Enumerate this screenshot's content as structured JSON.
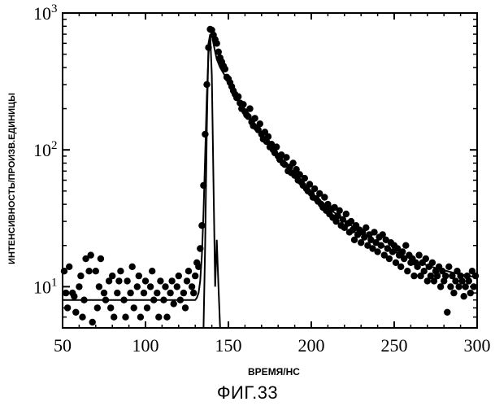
{
  "figure_label": "ФИГ.33",
  "chart_data": {
    "type": "scatter",
    "title": "",
    "xlabel": "ВРЕМЯ/НС",
    "ylabel": "ИНТЕНСИВНОСТЬ/ПРОИЗВ.ЕДИНИЦЫ",
    "xlim": [
      50,
      300
    ],
    "ylim": [
      5,
      1000
    ],
    "yscale": "log",
    "grid": false,
    "x_ticks": [
      {
        "value": 50,
        "label": "50"
      },
      {
        "value": 100,
        "label": "100"
      },
      {
        "value": 150,
        "label": "150"
      },
      {
        "value": 200,
        "label": "200"
      },
      {
        "value": 250,
        "label": "250"
      },
      {
        "value": 300,
        "label": "300"
      }
    ],
    "y_ticks": [
      {
        "value": 10,
        "base": "10",
        "exp": "1"
      },
      {
        "value": 100,
        "base": "10",
        "exp": "2"
      },
      {
        "value": 1000,
        "base": "10",
        "exp": "3"
      }
    ],
    "series": [
      {
        "role": "measured",
        "marker": "filled-circle",
        "points": [
          [
            51,
            13
          ],
          [
            52,
            9
          ],
          [
            53,
            7
          ],
          [
            54,
            14
          ],
          [
            56,
            9
          ],
          [
            57,
            8.5
          ],
          [
            58,
            6.5
          ],
          [
            60,
            10
          ],
          [
            61,
            12
          ],
          [
            62,
            6
          ],
          [
            63,
            8
          ],
          [
            64,
            16
          ],
          [
            66,
            13
          ],
          [
            67,
            17
          ],
          [
            68,
            5.5
          ],
          [
            70,
            13
          ],
          [
            71,
            7
          ],
          [
            72,
            10
          ],
          [
            73,
            16
          ],
          [
            75,
            9
          ],
          [
            76,
            8
          ],
          [
            78,
            11
          ],
          [
            79,
            7
          ],
          [
            80,
            12
          ],
          [
            81,
            6
          ],
          [
            83,
            9
          ],
          [
            84,
            11
          ],
          [
            85,
            13
          ],
          [
            87,
            8
          ],
          [
            88,
            6
          ],
          [
            89,
            11
          ],
          [
            91,
            9
          ],
          [
            92,
            14
          ],
          [
            93,
            7
          ],
          [
            95,
            10
          ],
          [
            96,
            12
          ],
          [
            97,
            6
          ],
          [
            99,
            9
          ],
          [
            100,
            11
          ],
          [
            101,
            7
          ],
          [
            103,
            10
          ],
          [
            104,
            13
          ],
          [
            105,
            8
          ],
          [
            107,
            9
          ],
          [
            108,
            6
          ],
          [
            109,
            11
          ],
          [
            111,
            8
          ],
          [
            112,
            10
          ],
          [
            113,
            6
          ],
          [
            115,
            9
          ],
          [
            116,
            11
          ],
          [
            117,
            7.5
          ],
          [
            119,
            10
          ],
          [
            120,
            12
          ],
          [
            121,
            8
          ],
          [
            123,
            9
          ],
          [
            124,
            7
          ],
          [
            125,
            11
          ],
          [
            126,
            13
          ],
          [
            128,
            10
          ],
          [
            129,
            9
          ],
          [
            130,
            12
          ],
          [
            131,
            15
          ],
          [
            132,
            14
          ],
          [
            133,
            19
          ],
          [
            134,
            28
          ],
          [
            135,
            55
          ],
          [
            136,
            130
          ],
          [
            137,
            300
          ],
          [
            138,
            560
          ],
          [
            139,
            760
          ],
          [
            140,
            750
          ],
          [
            141,
            690
          ],
          [
            142,
            640
          ],
          [
            143,
            600
          ],
          [
            144,
            520
          ],
          [
            145,
            470
          ],
          [
            146,
            440
          ],
          [
            147,
            410
          ],
          [
            148,
            390
          ],
          [
            149,
            340
          ],
          [
            150,
            330
          ],
          [
            151,
            310
          ],
          [
            152,
            290
          ],
          [
            153,
            270
          ],
          [
            154,
            255
          ],
          [
            155,
            240
          ],
          [
            156,
            245
          ],
          [
            157,
            220
          ],
          [
            158,
            200
          ],
          [
            159,
            215
          ],
          [
            160,
            190
          ],
          [
            161,
            180
          ],
          [
            162,
            175
          ],
          [
            163,
            200
          ],
          [
            164,
            160
          ],
          [
            165,
            150
          ],
          [
            166,
            170
          ],
          [
            167,
            145
          ],
          [
            168,
            140
          ],
          [
            169,
            155
          ],
          [
            170,
            130
          ],
          [
            171,
            120
          ],
          [
            172,
            135
          ],
          [
            173,
            115
          ],
          [
            174,
            125
          ],
          [
            175,
            105
          ],
          [
            176,
            110
          ],
          [
            177,
            100
          ],
          [
            178,
            95
          ],
          [
            179,
            105
          ],
          [
            180,
            90
          ],
          [
            181,
            85
          ],
          [
            182,
            92
          ],
          [
            183,
            80
          ],
          [
            184,
            78
          ],
          [
            185,
            88
          ],
          [
            186,
            70
          ],
          [
            187,
            75
          ],
          [
            188,
            68
          ],
          [
            189,
            80
          ],
          [
            190,
            65
          ],
          [
            191,
            72
          ],
          [
            192,
            60
          ],
          [
            193,
            66
          ],
          [
            194,
            58
          ],
          [
            195,
            55
          ],
          [
            196,
            62
          ],
          [
            197,
            52
          ],
          [
            198,
            50
          ],
          [
            199,
            56
          ],
          [
            200,
            48
          ],
          [
            201,
            45
          ],
          [
            202,
            52
          ],
          [
            203,
            44
          ],
          [
            204,
            42
          ],
          [
            205,
            48
          ],
          [
            206,
            40
          ],
          [
            207,
            38
          ],
          [
            208,
            45
          ],
          [
            209,
            36
          ],
          [
            210,
            40
          ],
          [
            211,
            34
          ],
          [
            212,
            37
          ],
          [
            213,
            32
          ],
          [
            214,
            38
          ],
          [
            215,
            30
          ],
          [
            216,
            33
          ],
          [
            217,
            36
          ],
          [
            218,
            28
          ],
          [
            219,
            31
          ],
          [
            220,
            27
          ],
          [
            221,
            34
          ],
          [
            222,
            29
          ],
          [
            223,
            25
          ],
          [
            224,
            30
          ],
          [
            225,
            26
          ],
          [
            226,
            22
          ],
          [
            227,
            28
          ],
          [
            228,
            24
          ],
          [
            229,
            26
          ],
          [
            230,
            21
          ],
          [
            231,
            25
          ],
          [
            232,
            23
          ],
          [
            233,
            27
          ],
          [
            234,
            20
          ],
          [
            235,
            24
          ],
          [
            236,
            22
          ],
          [
            237,
            19
          ],
          [
            238,
            25
          ],
          [
            239,
            21
          ],
          [
            240,
            18
          ],
          [
            241,
            23
          ],
          [
            242,
            20
          ],
          [
            243,
            24
          ],
          [
            244,
            17
          ],
          [
            245,
            22
          ],
          [
            246,
            19
          ],
          [
            247,
            16
          ],
          [
            248,
            21
          ],
          [
            249,
            18
          ],
          [
            250,
            20
          ],
          [
            251,
            15
          ],
          [
            252,
            19
          ],
          [
            253,
            17
          ],
          [
            254,
            14
          ],
          [
            255,
            18
          ],
          [
            256,
            16
          ],
          [
            257,
            20
          ],
          [
            258,
            13
          ],
          [
            259,
            17
          ],
          [
            260,
            15
          ],
          [
            261,
            16
          ],
          [
            262,
            12
          ],
          [
            263,
            15
          ],
          [
            264,
            14
          ],
          [
            265,
            17
          ],
          [
            266,
            12
          ],
          [
            267,
            15
          ],
          [
            268,
            13
          ],
          [
            269,
            16
          ],
          [
            270,
            11
          ],
          [
            271,
            14
          ],
          [
            272,
            12
          ],
          [
            273,
            15
          ],
          [
            274,
            11
          ],
          [
            275,
            13
          ],
          [
            276,
            12
          ],
          [
            277,
            14
          ],
          [
            278,
            10
          ],
          [
            279,
            13
          ],
          [
            280,
            11
          ],
          [
            281,
            12
          ],
          [
            282,
            6.5
          ],
          [
            283,
            14
          ],
          [
            284,
            10
          ],
          [
            285,
            12
          ],
          [
            286,
            9
          ],
          [
            287,
            11
          ],
          [
            288,
            13
          ],
          [
            289,
            10
          ],
          [
            290,
            12
          ],
          [
            291,
            11
          ],
          [
            292,
            8.5
          ],
          [
            293,
            10
          ],
          [
            294,
            12
          ],
          [
            295,
            11
          ],
          [
            296,
            9
          ],
          [
            297,
            13
          ],
          [
            298,
            10
          ],
          [
            299,
            12
          ]
        ]
      },
      {
        "role": "fit",
        "marker": "line",
        "points": [
          [
            50,
            8
          ],
          [
            130,
            8
          ],
          [
            131,
            8.3
          ],
          [
            132,
            9
          ],
          [
            133,
            11
          ],
          [
            134,
            17
          ],
          [
            135,
            35
          ],
          [
            136,
            90
          ],
          [
            137,
            250
          ],
          [
            138,
            500
          ],
          [
            139,
            680
          ],
          [
            140,
            700
          ],
          [
            141,
            600
          ],
          [
            142,
            520
          ],
          [
            143,
            460
          ],
          [
            145,
            400
          ],
          [
            150,
            315
          ],
          [
            155,
            245
          ],
          [
            160,
            195
          ],
          [
            165,
            160
          ],
          [
            170,
            132
          ],
          [
            175,
            110
          ],
          [
            180,
            92
          ],
          [
            185,
            78
          ],
          [
            190,
            66
          ],
          [
            195,
            57
          ],
          [
            200,
            49
          ],
          [
            205,
            43
          ],
          [
            210,
            38
          ],
          [
            215,
            34
          ],
          [
            220,
            30.5
          ],
          [
            225,
            27.5
          ],
          [
            230,
            25
          ],
          [
            235,
            23
          ],
          [
            240,
            21
          ],
          [
            245,
            19.5
          ],
          [
            250,
            18
          ],
          [
            255,
            17
          ],
          [
            260,
            16
          ],
          [
            265,
            15
          ],
          [
            270,
            14.3
          ],
          [
            275,
            13.7
          ],
          [
            280,
            13.2
          ],
          [
            285,
            12.7
          ],
          [
            290,
            12.3
          ],
          [
            295,
            12
          ],
          [
            300,
            11.7
          ]
        ]
      },
      {
        "role": "instrument-response",
        "marker": "line",
        "points": [
          [
            135,
            5
          ],
          [
            136,
            20
          ],
          [
            137,
            150
          ],
          [
            138,
            600
          ],
          [
            139,
            700
          ],
          [
            140,
            350
          ],
          [
            141,
            60
          ],
          [
            142,
            10
          ],
          [
            143,
            22
          ],
          [
            144,
            10
          ],
          [
            145,
            5
          ]
        ]
      }
    ]
  }
}
